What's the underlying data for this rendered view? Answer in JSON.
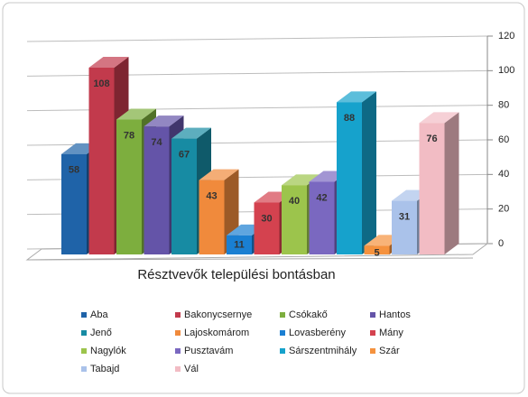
{
  "chart_data": {
    "type": "bar",
    "title": "Résztvevők települési bontásban",
    "ylim": [
      0,
      120
    ],
    "yticks": [
      0,
      20,
      40,
      60,
      80,
      100,
      120
    ],
    "grid": true,
    "series": [
      {
        "name": "Aba",
        "color": "#1f63a8",
        "values": [
          58
        ]
      },
      {
        "name": "Bakonycsernye",
        "color": "#c23a4c",
        "values": [
          108
        ]
      },
      {
        "name": "Csókakő",
        "color": "#7dae3e",
        "values": [
          78
        ]
      },
      {
        "name": "Hantos",
        "color": "#6454a8",
        "values": [
          74
        ]
      },
      {
        "name": "Jenő",
        "color": "#178ba3",
        "values": [
          67
        ]
      },
      {
        "name": "Lajoskomárom",
        "color": "#f08a3c",
        "values": [
          43
        ]
      },
      {
        "name": "Lovasberény",
        "color": "#1a7fd2",
        "values": [
          11
        ]
      },
      {
        "name": "Mány",
        "color": "#d4424f",
        "values": [
          30
        ]
      },
      {
        "name": "Nagylók",
        "color": "#9cc44c",
        "values": [
          40
        ]
      },
      {
        "name": "Pusztavám",
        "color": "#7a68c0",
        "values": [
          42
        ]
      },
      {
        "name": "Sárszentmihály",
        "color": "#16a2cc",
        "values": [
          88
        ]
      },
      {
        "name": "Szár",
        "color": "#f5923e",
        "values": [
          5
        ]
      },
      {
        "name": "Tabajd",
        "color": "#aac2ea",
        "values": [
          31
        ]
      },
      {
        "name": "Vál",
        "color": "#f2bcc4",
        "values": [
          76
        ]
      }
    ]
  }
}
